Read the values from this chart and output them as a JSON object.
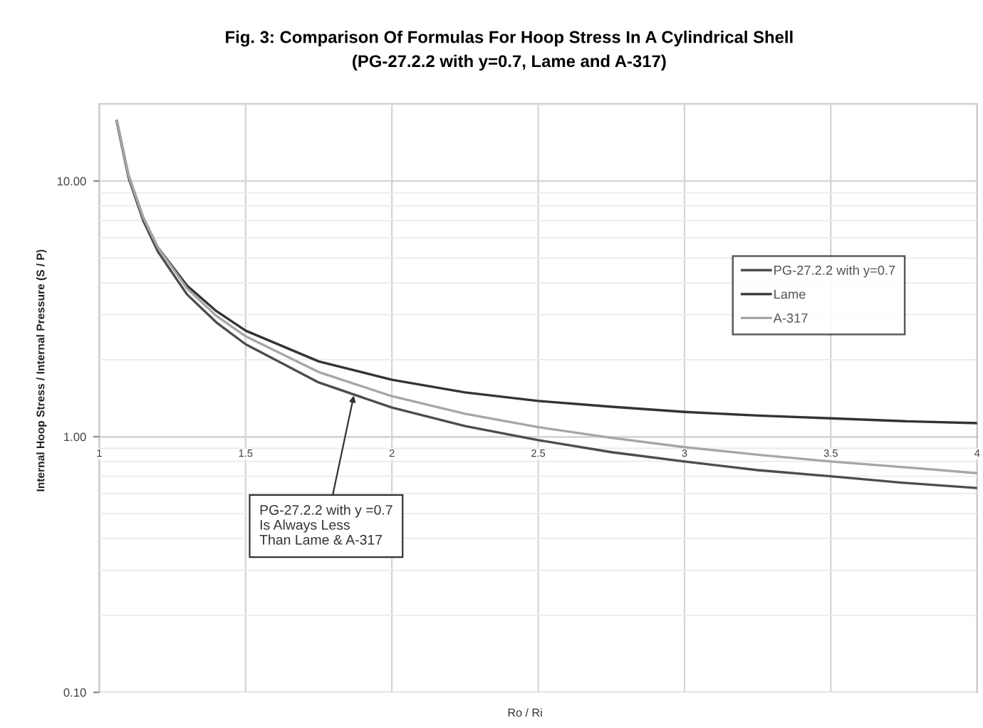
{
  "chart_data": {
    "type": "line",
    "title": "Fig. 3: Comparison Of Formulas For Hoop Stress In A Cylindrical Shell",
    "subtitle": "(PG-27.2.2 with y=0.7, Lame and A-317)",
    "xlabel": "Ro / Ri",
    "ylabel": "Internal Hoop Stress / Internal Pressure (S / P)",
    "x": [
      1.06,
      1.1,
      1.15,
      1.2,
      1.3,
      1.4,
      1.5,
      1.75,
      2,
      2.25,
      2.5,
      2.75,
      3,
      3.25,
      3.5,
      3.75,
      4
    ],
    "series": [
      {
        "name": "PG-27.2.2 with y=0.7",
        "color": "#4d4d4d",
        "values": [
          17,
          10.3,
          7.0,
          5.3,
          3.6,
          2.8,
          2.3,
          1.63,
          1.3,
          1.1,
          0.97,
          0.87,
          0.8,
          0.74,
          0.7,
          0.66,
          0.63
        ]
      },
      {
        "name": "Lame",
        "color": "#333333",
        "values": [
          17.2,
          10.5,
          7.2,
          5.5,
          3.9,
          3.1,
          2.6,
          1.97,
          1.67,
          1.49,
          1.38,
          1.31,
          1.25,
          1.21,
          1.18,
          1.15,
          1.13
        ]
      },
      {
        "name": "A-317",
        "color": "#a6a6a6",
        "values": [
          17.2,
          10.5,
          7.2,
          5.5,
          3.8,
          2.97,
          2.47,
          1.79,
          1.44,
          1.23,
          1.09,
          0.99,
          0.91,
          0.85,
          0.8,
          0.76,
          0.72
        ]
      }
    ],
    "xlim": [
      1,
      4
    ],
    "xticks": [
      1,
      1.5,
      2,
      2.5,
      3,
      3.5,
      4
    ],
    "ylim": [
      0.1,
      20
    ],
    "yticks": [
      {
        "value": 0.1,
        "label": "0.10"
      },
      {
        "value": 1,
        "label": "1.00"
      },
      {
        "value": 10,
        "label": "10.00"
      }
    ],
    "log": true,
    "grid": true,
    "legend": "right",
    "marker": "none",
    "line_style": "solid",
    "annotations": [
      {
        "text": "PG-27.2.2 with y =0.7\nIs Always Less\nThan Lame & A-317",
        "x": 1.87,
        "y": 1.45
      }
    ]
  }
}
